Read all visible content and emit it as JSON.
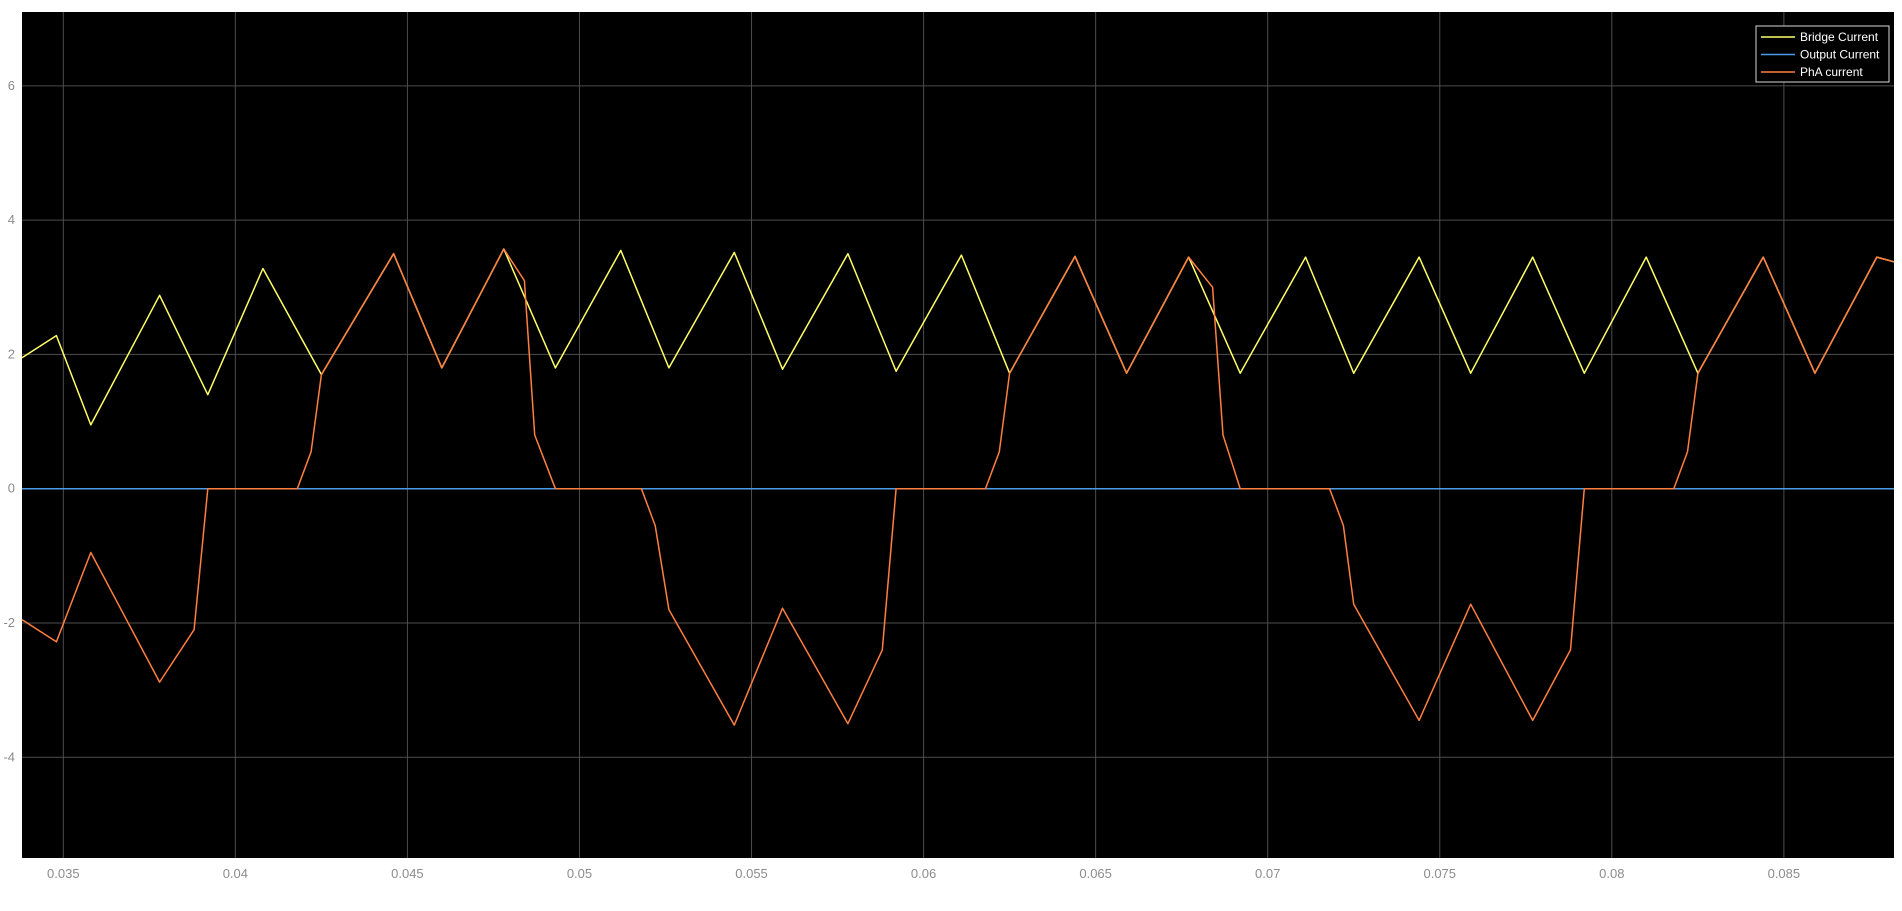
{
  "chart_data": {
    "type": "line",
    "title": "",
    "xlabel": "",
    "ylabel": "",
    "xlim": [
      0.0338,
      0.0882
    ],
    "ylim": [
      -5.5,
      7.1
    ],
    "grid": true,
    "legend_position": "top-right",
    "x_ticks": [
      "0.035",
      "0.04",
      "0.045",
      "0.05",
      "0.055",
      "0.06",
      "0.065",
      "0.07",
      "0.075",
      "0.08",
      "0.085"
    ],
    "x_tick_values": [
      0.035,
      0.04,
      0.045,
      0.05,
      0.055,
      0.06,
      0.065,
      0.07,
      0.075,
      0.08,
      0.085
    ],
    "y_ticks": [
      "-4",
      "-2",
      "0",
      "2",
      "4",
      "6"
    ],
    "y_tick_values": [
      -4,
      -2,
      0,
      2,
      4,
      6
    ],
    "colors": {
      "background": "#000000",
      "grid": "#4d4d4d",
      "tick_label": "#8c8c8c",
      "legend_border": "#d9d9d9",
      "legend_text": "#ffffff"
    },
    "series": [
      {
        "name": "Bridge Current",
        "color": "#ffff66",
        "x": [
          0.0338,
          0.0348,
          0.0358,
          0.0378,
          0.0392,
          0.0408,
          0.0425,
          0.0446,
          0.046,
          0.0478,
          0.0493,
          0.0512,
          0.0526,
          0.0545,
          0.0559,
          0.0578,
          0.0592,
          0.0611,
          0.0625,
          0.0644,
          0.0659,
          0.0677,
          0.0692,
          0.0711,
          0.0725,
          0.0744,
          0.0759,
          0.0777,
          0.0792,
          0.081,
          0.0825,
          0.0844,
          0.0859,
          0.0877,
          0.0882
        ],
        "y": [
          1.95,
          2.28,
          0.95,
          2.88,
          1.4,
          3.28,
          1.7,
          3.5,
          1.8,
          3.57,
          1.8,
          3.55,
          1.8,
          3.52,
          1.78,
          3.5,
          1.75,
          3.48,
          1.72,
          3.46,
          1.72,
          3.45,
          1.72,
          3.45,
          1.72,
          3.45,
          1.72,
          3.45,
          1.72,
          3.45,
          1.72,
          3.45,
          1.72,
          3.45,
          3.38
        ]
      },
      {
        "name": "Output Current",
        "color": "#4d9be6",
        "x": [
          0.0338,
          0.0882
        ],
        "y": [
          0.0,
          0.0
        ]
      },
      {
        "name": "PhA current",
        "color": "#ff7f40",
        "x": [
          0.0338,
          0.0348,
          0.0358,
          0.0378,
          0.0388,
          0.0392,
          0.0418,
          0.0422,
          0.0425,
          0.0446,
          0.046,
          0.0478,
          0.0484,
          0.0487,
          0.0493,
          0.0518,
          0.0522,
          0.0526,
          0.0545,
          0.0559,
          0.0578,
          0.0588,
          0.0592,
          0.0618,
          0.0622,
          0.0625,
          0.0644,
          0.0659,
          0.0677,
          0.0684,
          0.0687,
          0.0692,
          0.0718,
          0.0722,
          0.0725,
          0.0744,
          0.0759,
          0.0777,
          0.0788,
          0.0792,
          0.0818,
          0.0822,
          0.0825,
          0.0844,
          0.0859,
          0.0877,
          0.0882
        ],
        "y": [
          -1.95,
          -2.28,
          -0.95,
          -2.88,
          -2.1,
          0.0,
          0.0,
          0.55,
          1.7,
          3.5,
          1.8,
          3.57,
          3.1,
          0.8,
          0.0,
          0.0,
          -0.55,
          -1.8,
          -3.52,
          -1.78,
          -3.5,
          -2.4,
          0.0,
          0.0,
          0.55,
          1.72,
          3.46,
          1.72,
          3.45,
          3.0,
          0.8,
          0.0,
          0.0,
          -0.55,
          -1.72,
          -3.45,
          -1.72,
          -3.45,
          -2.4,
          0.0,
          0.0,
          0.55,
          1.72,
          3.45,
          1.72,
          3.45,
          3.38
        ]
      }
    ]
  }
}
